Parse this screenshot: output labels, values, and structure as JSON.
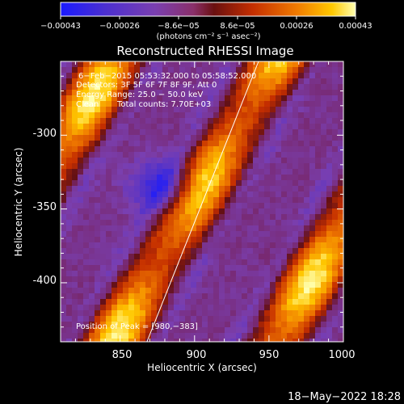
{
  "colors": {
    "background": "#000000",
    "foreground": "#ffffff",
    "cmap": [
      "#1a1aff",
      "#4b2fd0",
      "#7a3fb0",
      "#9a3a7a",
      "#7a1a20",
      "#c42e00",
      "#f07a00",
      "#ffc800",
      "#ffff90"
    ]
  },
  "colorbar": {
    "ticks": [
      "−0.00043",
      "−0.00026",
      "−8.6e−05",
      "8.6e−05",
      "0.00026",
      "0.00043"
    ],
    "unit_label": "(photons cm⁻² s⁻¹ asec⁻²)"
  },
  "chart_data": {
    "type": "heatmap",
    "title": "Reconstructed RHESSI Image",
    "xlabel": "Heliocentric X (arcsec)",
    "ylabel": "Heliocentric Y (arcsec)",
    "xlim": [
      810,
      1000
    ],
    "ylim": [
      -440,
      -250
    ],
    "xticks": [
      850,
      900,
      950,
      1000
    ],
    "yticks": [
      -300,
      -350,
      -400
    ],
    "annotations": [
      "6−Feb−2015 05:53:32.000 to 05:58:52.000",
      "Detectors: 3F 5F 6F 7F 8F 9F, Att 0",
      "Energy Range: 25.0 − 50.0 keV",
      "Clean",
      "Total counts: 7.70E+03"
    ],
    "peak_label": "Position of Peak = [980,−383]",
    "peak": [
      980,
      -383
    ],
    "limb_line": [
      [
        868,
        -440
      ],
      [
        943,
        -250
      ]
    ],
    "ridges": [
      {
        "peak": 1.0,
        "width": 11,
        "amp": 1.0
      },
      {
        "peak": 0.7,
        "width": 10,
        "amp": 0.85
      }
    ],
    "ridge_offsets": [
      -95,
      0,
      95
    ],
    "trough": {
      "x": 880,
      "y": -335,
      "depth": 1.0
    }
  },
  "footer": {
    "date": "18−May−2022 18:28"
  }
}
